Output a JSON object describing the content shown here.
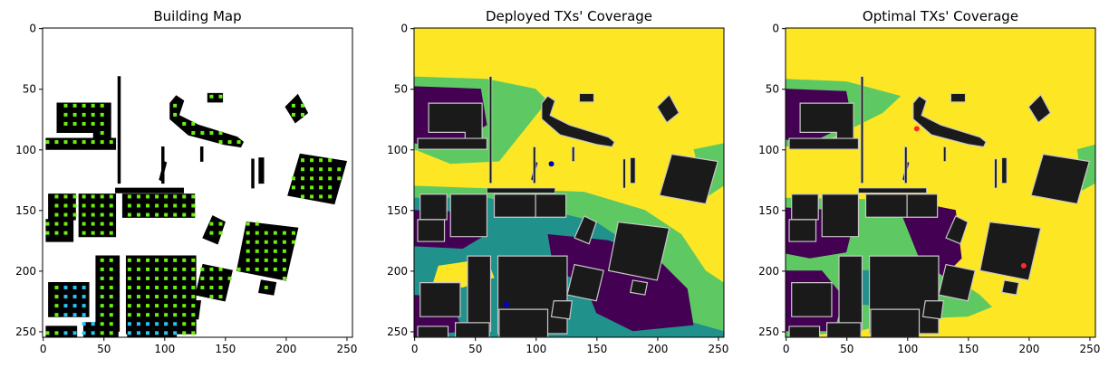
{
  "colors": {
    "viridis_dark": "#440154",
    "viridis_teal": "#21918c",
    "viridis_green": "#5ec962",
    "viridis_yellow": "#fde725",
    "building": "#1a1a1a",
    "building_edge": "#c8c8c8",
    "rx_green": "#6bf00d",
    "rx_blue": "#29c4f5",
    "tx_deployed": "#0000c8",
    "tx_optimal": "#ff2a2a"
  },
  "chart_data": [
    {
      "type": "heatmap",
      "title": "Building Map",
      "xlim": [
        0,
        255
      ],
      "ylim": [
        255,
        0
      ],
      "x_ticks": [
        0,
        50,
        100,
        150,
        200,
        250
      ],
      "y_ticks": [
        0,
        50,
        100,
        150,
        200,
        250
      ],
      "categories": [
        "building",
        "receiver",
        "receiver-alt"
      ]
    },
    {
      "type": "heatmap",
      "title": "Deployed TXs' Coverage",
      "xlim": [
        0,
        255
      ],
      "ylim": [
        255,
        0
      ],
      "x_ticks": [
        0,
        50,
        100,
        150,
        200,
        250
      ],
      "y_ticks": [
        0,
        50,
        100,
        150,
        200,
        250
      ],
      "transmitters": [
        [
          113,
          112
        ],
        [
          76,
          228
        ]
      ]
    },
    {
      "type": "heatmap",
      "title": "Optimal TXs' Coverage",
      "xlim": [
        0,
        255
      ],
      "ylim": [
        255,
        0
      ],
      "x_ticks": [
        0,
        50,
        100,
        150,
        200,
        250
      ],
      "y_ticks": [
        0,
        50,
        100,
        150,
        200,
        250
      ],
      "transmitters": [
        [
          108,
          83
        ],
        [
          196,
          196
        ]
      ]
    }
  ]
}
